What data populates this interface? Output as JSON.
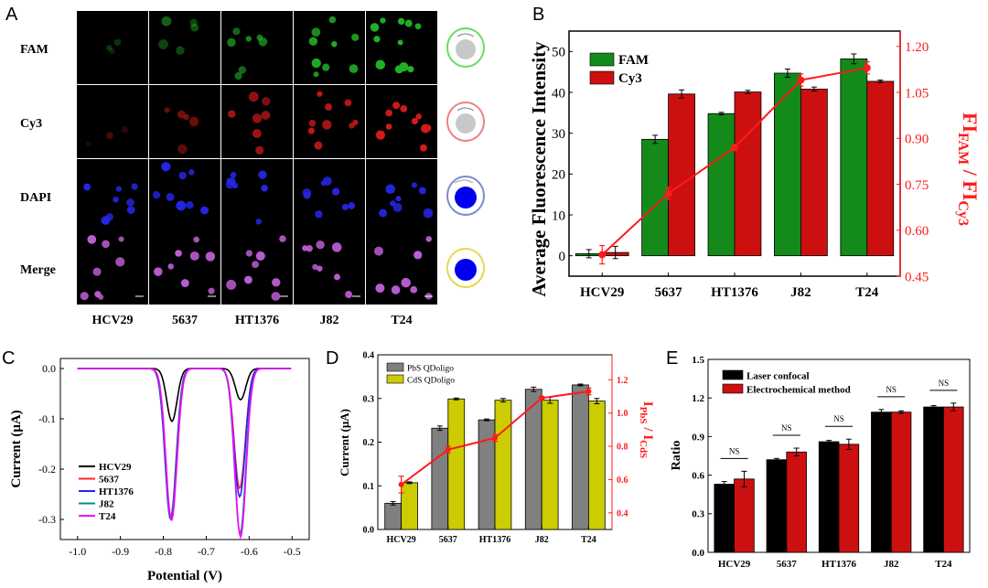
{
  "panel_labels": {
    "A": "A",
    "B": "B",
    "C": "C",
    "D": "D",
    "E": "E"
  },
  "colors": {
    "fam": "#138a1a",
    "cy3": "#cc1010",
    "red_line": "#ff1a1a",
    "gray": "#808080",
    "yellow": "#cccc00",
    "black": "#000000",
    "hcv29": "#000000",
    "c5637": "#ff2020",
    "ht1376": "#2020ff",
    "j82": "#008b8b",
    "t24": "#ff00ff"
  },
  "panel_a": {
    "rows": [
      "FAM",
      "Cy3",
      "DAPI",
      "Merge"
    ],
    "columns": [
      "HCV29",
      "5637",
      "HT1376",
      "J82",
      "T24"
    ]
  },
  "chart_data": [
    {
      "id": "B",
      "type": "bar",
      "categories": [
        "HCV29",
        "5637",
        "HT1376",
        "J82",
        "T24"
      ],
      "series": [
        {
          "name": "FAM",
          "values": [
            0.5,
            28.5,
            34.8,
            44.7,
            48.2
          ],
          "errors": [
            1.0,
            1.0,
            0.3,
            1.0,
            1.2
          ]
        },
        {
          "name": "Cy3",
          "values": [
            0.8,
            39.6,
            40.1,
            40.8,
            42.7
          ],
          "errors": [
            1.5,
            1.0,
            0.4,
            0.5,
            0.3
          ]
        }
      ],
      "line": {
        "name": "FI FAM / FI Cy3",
        "values": [
          0.52,
          0.72,
          0.87,
          1.09,
          1.13
        ],
        "errors": [
          0.03,
          0.02,
          0.01,
          0.02,
          0.02
        ]
      },
      "ylabel": "Average Fluorescence Intensity",
      "ylabel_right": "FI_FAM / FI_Cy3",
      "ylabel_right_parts": {
        "a": "FI",
        "b": "FAM",
        "c": " / FI",
        "d": "Cy3"
      },
      "ylim": [
        -5,
        55
      ],
      "yticks": [
        "0",
        "10",
        "20",
        "30",
        "40",
        "50"
      ],
      "ylim_right": [
        0.45,
        1.25
      ],
      "yticks_right": [
        "0.45",
        "0.60",
        "0.75",
        "0.90",
        "1.05",
        "1.20"
      ],
      "legend": [
        "FAM",
        "Cy3"
      ]
    },
    {
      "id": "C",
      "type": "line",
      "xlabel": "Potential (V)",
      "ylabel": "Current (μA)",
      "xlim": [
        -1.0,
        -0.5
      ],
      "xticks": [
        "-1.0",
        "-0.9",
        "-0.8",
        "-0.7",
        "-0.6",
        "-0.5"
      ],
      "ylim": [
        -0.34,
        0.02
      ],
      "yticks": [
        "0.0",
        "-0.1",
        "-0.2",
        "-0.3"
      ],
      "series": [
        {
          "name": "HCV29",
          "peaks": [
            {
              "x": -0.78,
              "depth": 0.105,
              "w": 0.012
            },
            {
              "x": -0.62,
              "depth": 0.062,
              "w": 0.012
            }
          ]
        },
        {
          "name": "5637",
          "peaks": [
            {
              "x": -0.783,
              "depth": 0.295,
              "w": 0.013
            },
            {
              "x": -0.622,
              "depth": 0.238,
              "w": 0.013
            }
          ]
        },
        {
          "name": "HT1376",
          "peaks": [
            {
              "x": -0.783,
              "depth": 0.3,
              "w": 0.013
            },
            {
              "x": -0.622,
              "depth": 0.255,
              "w": 0.013
            }
          ]
        },
        {
          "name": "J82",
          "peaks": [
            {
              "x": -0.782,
              "depth": 0.298,
              "w": 0.013
            },
            {
              "x": -0.621,
              "depth": 0.328,
              "w": 0.013
            }
          ]
        },
        {
          "name": "T24",
          "peaks": [
            {
              "x": -0.781,
              "depth": 0.302,
              "w": 0.013
            },
            {
              "x": -0.62,
              "depth": 0.335,
              "w": 0.013
            }
          ]
        }
      ],
      "legend": [
        "HCV29",
        "5637",
        "HT1376",
        "J82",
        "T24"
      ]
    },
    {
      "id": "D",
      "type": "bar",
      "categories": [
        "HCV29",
        "5637",
        "HT1376",
        "J82",
        "T24"
      ],
      "series": [
        {
          "name": "PbS QDoligo",
          "values": [
            0.06,
            0.232,
            0.251,
            0.321,
            0.331
          ],
          "errors": [
            0.004,
            0.005,
            0.002,
            0.005,
            0.002
          ]
        },
        {
          "name": "CdS QDoligo",
          "values": [
            0.107,
            0.299,
            0.296,
            0.296,
            0.294
          ],
          "errors": [
            0.002,
            0.002,
            0.004,
            0.007,
            0.006
          ]
        }
      ],
      "line": {
        "name": "I_PbS / I_CdS",
        "values": [
          0.57,
          0.78,
          0.85,
          1.09,
          1.13
        ],
        "errors": [
          0.05,
          0.02,
          0.02,
          0.01,
          0.02
        ]
      },
      "ylabel": "Current (μA)",
      "ylabel_right_parts": {
        "a": "I",
        "b": "PbS",
        "c": " / I",
        "d": "CdS"
      },
      "ylim": [
        0.0,
        0.4
      ],
      "yticks": [
        "0.0",
        "0.1",
        "0.2",
        "0.3",
        "0.4"
      ],
      "ylim_right": [
        0.3,
        1.35
      ],
      "yticks_right": [
        "0.4",
        "0.6",
        "0.8",
        "1.0",
        "1.2"
      ],
      "legend": [
        "PbS QDoligo",
        "CdS QDoligo"
      ]
    },
    {
      "id": "E",
      "type": "bar",
      "categories": [
        "HCV29",
        "5637",
        "HT1376",
        "J82",
        "T24"
      ],
      "series": [
        {
          "name": "Laser confocal",
          "values": [
            0.53,
            0.72,
            0.86,
            1.09,
            1.13
          ],
          "errors": [
            0.02,
            0.01,
            0.01,
            0.02,
            0.01
          ]
        },
        {
          "name": "Electrochemical method",
          "values": [
            0.57,
            0.78,
            0.84,
            1.09,
            1.13
          ],
          "errors": [
            0.06,
            0.03,
            0.04,
            0.01,
            0.03
          ]
        }
      ],
      "annotation": "NS",
      "ylabel": "Ratio",
      "ylim": [
        0.0,
        1.5
      ],
      "yticks": [
        "0.0",
        "0.3",
        "0.6",
        "0.9",
        "1.2",
        "1.5"
      ],
      "legend": [
        "Laser confocal",
        "Electrochemical method"
      ]
    }
  ]
}
